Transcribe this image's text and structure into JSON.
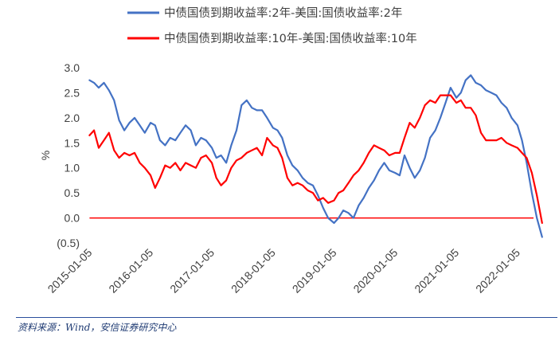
{
  "chart_data": {
    "type": "line",
    "ylabel": "%",
    "ylim": [
      -0.5,
      3.0
    ],
    "yticks": [
      "3.0",
      "2.5",
      "2.0",
      "1.5",
      "1.0",
      "0.5",
      "0.0",
      "(0.5)"
    ],
    "xlim": [
      "2014-12-15",
      "2022-07-15"
    ],
    "xticks": [
      "2015-01-05",
      "2016-01-05",
      "2017-01-05",
      "2018-01-05",
      "2019-01-05",
      "2020-01-05",
      "2021-01-05",
      "2022-01-05"
    ],
    "grid": false,
    "legend_position": "top",
    "series": [
      {
        "name": "中债国债到期收益率:2年-美国:国债收益率:2年",
        "color": "#4472c4",
        "x": [
          "2015-01-05",
          "2015-02-01",
          "2015-03-01",
          "2015-04-01",
          "2015-05-01",
          "2015-06-01",
          "2015-07-01",
          "2015-08-01",
          "2015-09-01",
          "2015-10-01",
          "2015-11-01",
          "2015-12-01",
          "2016-01-05",
          "2016-02-01",
          "2016-03-01",
          "2016-04-01",
          "2016-05-01",
          "2016-06-01",
          "2016-07-01",
          "2016-08-01",
          "2016-09-01",
          "2016-10-01",
          "2016-11-01",
          "2016-12-01",
          "2017-01-05",
          "2017-02-01",
          "2017-03-01",
          "2017-04-01",
          "2017-05-01",
          "2017-06-01",
          "2017-07-01",
          "2017-08-01",
          "2017-09-01",
          "2017-10-01",
          "2017-11-01",
          "2017-12-01",
          "2018-01-05",
          "2018-02-01",
          "2018-03-01",
          "2018-04-01",
          "2018-05-01",
          "2018-06-01",
          "2018-07-01",
          "2018-08-01",
          "2018-09-01",
          "2018-10-01",
          "2018-11-01",
          "2018-12-01",
          "2019-01-05",
          "2019-02-01",
          "2019-03-01",
          "2019-04-01",
          "2019-05-01",
          "2019-06-01",
          "2019-07-01",
          "2019-08-01",
          "2019-09-01",
          "2019-10-01",
          "2019-11-01",
          "2019-12-01",
          "2020-01-05",
          "2020-02-01",
          "2020-03-01",
          "2020-04-01",
          "2020-05-01",
          "2020-06-01",
          "2020-07-01",
          "2020-08-01",
          "2020-09-01",
          "2020-10-01",
          "2020-11-01",
          "2020-12-01",
          "2021-01-05",
          "2021-02-01",
          "2021-03-01",
          "2021-04-01",
          "2021-05-01",
          "2021-06-01",
          "2021-07-01",
          "2021-08-01",
          "2021-09-01",
          "2021-10-01",
          "2021-11-01",
          "2021-12-01",
          "2022-01-05",
          "2022-02-01",
          "2022-03-01",
          "2022-04-01",
          "2022-05-01",
          "2022-06-01"
        ],
        "values": [
          2.75,
          2.7,
          2.6,
          2.7,
          2.55,
          2.35,
          1.95,
          1.75,
          1.9,
          2.0,
          1.85,
          1.7,
          1.9,
          1.85,
          1.55,
          1.45,
          1.6,
          1.55,
          1.7,
          1.85,
          1.75,
          1.45,
          1.6,
          1.55,
          1.4,
          1.2,
          1.25,
          1.1,
          1.45,
          1.75,
          2.25,
          2.35,
          2.2,
          2.15,
          2.15,
          2.0,
          1.8,
          1.75,
          1.6,
          1.25,
          1.05,
          0.95,
          0.8,
          0.7,
          0.65,
          0.45,
          0.2,
          0.0,
          -0.1,
          0.0,
          0.15,
          0.1,
          0.0,
          0.25,
          0.4,
          0.6,
          0.75,
          0.95,
          1.1,
          0.95,
          0.9,
          0.85,
          1.25,
          1.0,
          0.8,
          0.95,
          1.2,
          1.6,
          1.75,
          2.0,
          2.3,
          2.6,
          2.4,
          2.5,
          2.75,
          2.85,
          2.7,
          2.65,
          2.55,
          2.5,
          2.45,
          2.3,
          2.2,
          2.0,
          1.85,
          1.55,
          1.1,
          0.5,
          0.0,
          -0.38
        ]
      },
      {
        "name": "中债国债到期收益率:10年-美国:国债收益率:10年",
        "color": "#ff0000",
        "x": [
          "2015-01-05",
          "2015-02-01",
          "2015-03-01",
          "2015-04-01",
          "2015-05-01",
          "2015-06-01",
          "2015-07-01",
          "2015-08-01",
          "2015-09-01",
          "2015-10-01",
          "2015-11-01",
          "2015-12-01",
          "2016-01-05",
          "2016-02-01",
          "2016-03-01",
          "2016-04-01",
          "2016-05-01",
          "2016-06-01",
          "2016-07-01",
          "2016-08-01",
          "2016-09-01",
          "2016-10-01",
          "2016-11-01",
          "2016-12-01",
          "2017-01-05",
          "2017-02-01",
          "2017-03-01",
          "2017-04-01",
          "2017-05-01",
          "2017-06-01",
          "2017-07-01",
          "2017-08-01",
          "2017-09-01",
          "2017-10-01",
          "2017-11-01",
          "2017-12-01",
          "2018-01-05",
          "2018-02-01",
          "2018-03-01",
          "2018-04-01",
          "2018-05-01",
          "2018-06-01",
          "2018-07-01",
          "2018-08-01",
          "2018-09-01",
          "2018-10-01",
          "2018-11-01",
          "2018-12-01",
          "2019-01-05",
          "2019-02-01",
          "2019-03-01",
          "2019-04-01",
          "2019-05-01",
          "2019-06-01",
          "2019-07-01",
          "2019-08-01",
          "2019-09-01",
          "2019-10-01",
          "2019-11-01",
          "2019-12-01",
          "2020-01-05",
          "2020-02-01",
          "2020-03-01",
          "2020-04-01",
          "2020-05-01",
          "2020-06-01",
          "2020-07-01",
          "2020-08-01",
          "2020-09-01",
          "2020-10-01",
          "2020-11-01",
          "2020-12-01",
          "2021-01-05",
          "2021-02-01",
          "2021-03-01",
          "2021-04-01",
          "2021-05-01",
          "2021-06-01",
          "2021-07-01",
          "2021-08-01",
          "2021-09-01",
          "2021-10-01",
          "2021-11-01",
          "2021-12-01",
          "2022-01-05",
          "2022-02-01",
          "2022-03-01",
          "2022-04-01",
          "2022-05-01",
          "2022-06-01"
        ],
        "values": [
          1.65,
          1.75,
          1.4,
          1.55,
          1.7,
          1.35,
          1.2,
          1.3,
          1.25,
          1.3,
          1.1,
          1.0,
          0.85,
          0.6,
          0.8,
          1.05,
          1.0,
          1.1,
          0.95,
          1.1,
          1.05,
          1.0,
          1.2,
          1.25,
          1.1,
          0.8,
          0.65,
          0.75,
          1.0,
          1.15,
          1.2,
          1.3,
          1.35,
          1.4,
          1.25,
          1.6,
          1.45,
          1.4,
          1.2,
          0.8,
          0.65,
          0.7,
          0.65,
          0.55,
          0.5,
          0.35,
          0.4,
          0.3,
          0.35,
          0.5,
          0.55,
          0.7,
          0.85,
          0.95,
          1.1,
          1.3,
          1.45,
          1.4,
          1.35,
          1.25,
          1.3,
          1.3,
          1.6,
          1.9,
          1.8,
          2.0,
          2.25,
          2.35,
          2.3,
          2.45,
          2.45,
          2.45,
          2.3,
          2.35,
          2.2,
          2.2,
          2.05,
          1.7,
          1.55,
          1.55,
          1.55,
          1.6,
          1.5,
          1.45,
          1.4,
          1.3,
          1.2,
          0.9,
          0.45,
          -0.1
        ]
      }
    ],
    "reference_line": {
      "y": 0.0,
      "color": "#ff0000"
    }
  },
  "source": "资料来源：Wind，安信证券研究中心"
}
